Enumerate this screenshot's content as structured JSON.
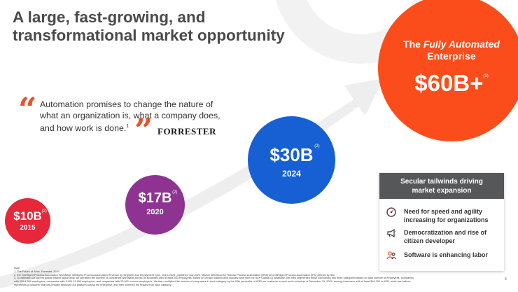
{
  "title": {
    "line1": "A large, fast-growing, and",
    "line2": "transformational market opportunity"
  },
  "quote": {
    "line1": "Automation promises to change the nature of",
    "line2": "what an organization is, what a company does,",
    "line3": "and how work is done.",
    "footnote": "1",
    "source": "FORRESTER"
  },
  "markets": [
    {
      "value": "$10B",
      "note": "(2)",
      "year": "2015",
      "color": "#e6283a"
    },
    {
      "value": "$17B",
      "note": "(2)",
      "year": "2020",
      "color": "#8e3391"
    },
    {
      "value": "$30B",
      "note": "(2)",
      "year": "2024",
      "color": "#1760d4"
    }
  ],
  "enterprise": {
    "prefix": "The",
    "emphasis": "Fully Automated",
    "suffix": "Enterprise",
    "value": "$60B+",
    "note": "(3)",
    "color": "#fb4d1c"
  },
  "tailwinds": {
    "header_line1": "Secular tailwinds driving",
    "header_line2": "market expansion",
    "items": [
      {
        "icon": "speedometer-icon",
        "line1": "Need for speed and agility",
        "line2": "increasing for organizations"
      },
      {
        "icon": "megaphone-icon",
        "line1": "Democratization and rise of",
        "line2": "citizen developer"
      },
      {
        "icon": "people-icon",
        "line1": "Software is enhancing labor",
        "line2": ""
      }
    ]
  },
  "page_number": "6",
  "notes": {
    "heading": "Note:",
    "n1": "1.   The Future of Work, Forrester, 2019",
    "n2": "2.   IDC Intelligent Process Automation Worldwide Intelligent Process Automation Revenue by Segment and Deployment Type, 2015–2024, published July 2020. Market definitions for Robotic Process Automation (RPA) and Intelligent Process Automation (IPA) defined by IDC.",
    "n3": "3.   To estimate our current global market opportunity, we identified the number of companies worldwide across all industries with at least 200 employees, based on certain independent industry data from the S&P Capital IQ database. We then segmented these companies into three categories based on total number of employees: companies",
    "n3b": "with 200-4,999 employees, companies with 5,000-19,999 employees, and companies with 20,000 or more employees. We then multiplied the number of companies in each category by the 90th percentile of ARR per customer in each such cohort as of December 31, 2020, among customers with at least $10,000 in ARR, which we believe",
    "n3c": "represents a customer that has broadly deployed our platform across the enterprise, and then summed the results from each category."
  }
}
